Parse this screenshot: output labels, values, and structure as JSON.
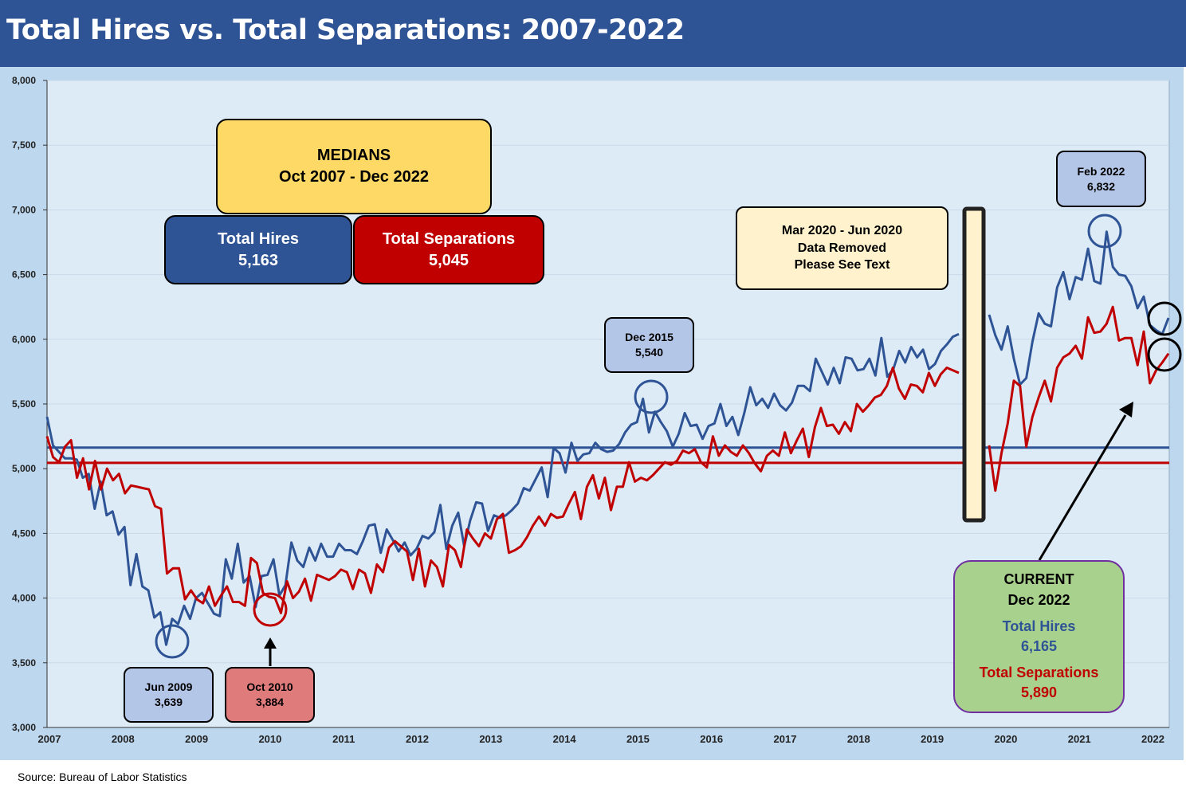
{
  "title": "Total Hires vs. Total Separations: 2007-2022",
  "source": "Source: Bureau of Labor Statistics",
  "colors": {
    "hires": "#2f5496",
    "separations": "#c00000",
    "header": "#2f5496",
    "plot_bg": "#ddebf7",
    "panel_bg": "#bdd7ee"
  },
  "medians_box": {
    "line1": "MEDIANS",
    "line2": "Oct 2007 - Dec 2022"
  },
  "median_hires_box": {
    "label": "Total Hires",
    "value": "5,163"
  },
  "median_separations_box": {
    "label": "Total Separations",
    "value": "5,045"
  },
  "gap_note": {
    "line1": "Mar 2020 - Jun 2020",
    "line2": "Data Removed",
    "line3": "Please See Text"
  },
  "callout_jun2009": {
    "date": "Jun 2009",
    "value": "3,639"
  },
  "callout_oct2010": {
    "date": "Oct 2010",
    "value": "3,884"
  },
  "callout_dec2015": {
    "date": "Dec 2015",
    "value": "5,540"
  },
  "callout_feb2022": {
    "date": "Feb 2022",
    "value": "6,832"
  },
  "current_box": {
    "title": "CURRENT",
    "date": "Dec 2022",
    "hires_label": "Total Hires",
    "hires_value": "6,165",
    "separations_label": "Total Separations",
    "separations_value": "5,890"
  },
  "chart_data": {
    "type": "line",
    "title": "Total Hires vs. Total Separations: 2007-2022",
    "xlabel": "",
    "ylabel": "",
    "ylim": [
      3000,
      8000
    ],
    "yticks": [
      3000,
      3500,
      4000,
      4500,
      5000,
      5500,
      6000,
      6500,
      7000,
      7500,
      8000
    ],
    "ytick_labels": [
      "3,000",
      "3,500",
      "4,000",
      "4,500",
      "5,000",
      "5,500",
      "6,000",
      "6,500",
      "7,000",
      "7,500",
      "8,000"
    ],
    "xtick_labels": [
      "2007",
      "2008",
      "2009",
      "2010",
      "2011",
      "2012",
      "2013",
      "2014",
      "2015",
      "2016",
      "2017",
      "2018",
      "2019",
      "2020",
      "2021",
      "2022"
    ],
    "grid": true,
    "legend": "none",
    "x_start": "2007-10",
    "x_end": "2022-12",
    "gap": {
      "from": "2020-03",
      "to": "2020-06"
    },
    "median_lines": {
      "hires": 5163,
      "separations": 5045
    },
    "series": [
      {
        "name": "Total Hires",
        "color": "#2f5496",
        "segments": [
          [
            5400,
            5180,
            5130,
            5080,
            5080,
            5070,
            4930,
            4960,
            4690,
            4900,
            4640,
            4670,
            4490,
            4550,
            4100,
            4340,
            4090,
            4060,
            3850,
            3890,
            3639,
            3840,
            3800,
            3940,
            3840,
            4000,
            4040,
            3960,
            3880,
            3860,
            4300,
            4150,
            4420,
            4120,
            4170,
            3930,
            4170,
            4180,
            4300,
            4020,
            4100,
            4430,
            4290,
            4240,
            4390,
            4290,
            4420,
            4320,
            4320,
            4420,
            4370,
            4370,
            4340,
            4440,
            4560,
            4570,
            4350,
            4530,
            4450,
            4360,
            4430,
            4330,
            4380,
            4480,
            4460,
            4510,
            4720,
            4380,
            4560,
            4660,
            4400,
            4600,
            4740,
            4730,
            4520,
            4640,
            4620,
            4640,
            4680,
            4730,
            4850,
            4830,
            4920,
            5010,
            4780,
            5160,
            5120,
            4970,
            5200,
            5060,
            5110,
            5120,
            5200,
            5150,
            5130,
            5140,
            5190,
            5280,
            5340,
            5360,
            5540,
            5280,
            5440,
            5360,
            5290,
            5170,
            5270,
            5430,
            5330,
            5340,
            5230,
            5330,
            5350,
            5500,
            5330,
            5400,
            5260,
            5430,
            5630,
            5490,
            5540,
            5470,
            5580,
            5490,
            5450,
            5510,
            5640,
            5640,
            5600,
            5850,
            5750,
            5650,
            5780,
            5660,
            5860,
            5850,
            5760,
            5770,
            5850,
            5720,
            6010,
            5710,
            5770,
            5910,
            5820,
            5940,
            5860,
            5920,
            5770,
            5810,
            5910,
            5960,
            6020,
            6040
          ],
          [
            6190,
            6030,
            5920,
            6100,
            5850,
            5650,
            5700,
            5980,
            6200,
            6120,
            6100,
            6400,
            6520,
            6310,
            6480,
            6460,
            6700,
            6450,
            6430,
            6832,
            6560,
            6500,
            6490,
            6410,
            6240,
            6330,
            6110,
            6070,
            6040,
            6165
          ]
        ]
      },
      {
        "name": "Total Separations",
        "color": "#c00000",
        "segments": [
          [
            5250,
            5090,
            5050,
            5170,
            5220,
            4930,
            5080,
            4840,
            5060,
            4840,
            5000,
            4910,
            4960,
            4810,
            4870,
            4860,
            4850,
            4840,
            4710,
            4690,
            4190,
            4230,
            4230,
            3990,
            4060,
            3990,
            3960,
            4090,
            3940,
            4020,
            4090,
            3970,
            3970,
            3940,
            4310,
            4270,
            4040,
            4010,
            4000,
            3884,
            4130,
            4000,
            4050,
            4150,
            3980,
            4180,
            4160,
            4140,
            4170,
            4220,
            4200,
            4070,
            4220,
            4190,
            4040,
            4260,
            4200,
            4390,
            4440,
            4400,
            4360,
            4140,
            4380,
            4090,
            4290,
            4240,
            4090,
            4410,
            4370,
            4240,
            4530,
            4460,
            4400,
            4500,
            4460,
            4610,
            4650,
            4350,
            4370,
            4400,
            4470,
            4560,
            4630,
            4560,
            4650,
            4620,
            4630,
            4730,
            4820,
            4610,
            4860,
            4950,
            4770,
            4930,
            4680,
            4860,
            4860,
            5050,
            4900,
            4930,
            4910,
            4950,
            5000,
            5050,
            5030,
            5060,
            5140,
            5120,
            5150,
            5050,
            5010,
            5250,
            5100,
            5180,
            5130,
            5100,
            5180,
            5120,
            5040,
            4980,
            5100,
            5140,
            5100,
            5280,
            5120,
            5220,
            5310,
            5090,
            5320,
            5470,
            5330,
            5340,
            5270,
            5360,
            5290,
            5500,
            5440,
            5490,
            5550,
            5570,
            5640,
            5780,
            5620,
            5540,
            5650,
            5640,
            5590,
            5740,
            5640,
            5730,
            5780,
            5760,
            5740
          ],
          [
            5180,
            4830,
            5120,
            5350,
            5680,
            5640,
            5170,
            5400,
            5550,
            5680,
            5520,
            5780,
            5860,
            5890,
            5950,
            5850,
            6170,
            6050,
            6060,
            6120,
            6250,
            5990,
            6010,
            6010,
            5800,
            6060,
            5660,
            5760,
            5820,
            5890
          ]
        ]
      }
    ]
  }
}
